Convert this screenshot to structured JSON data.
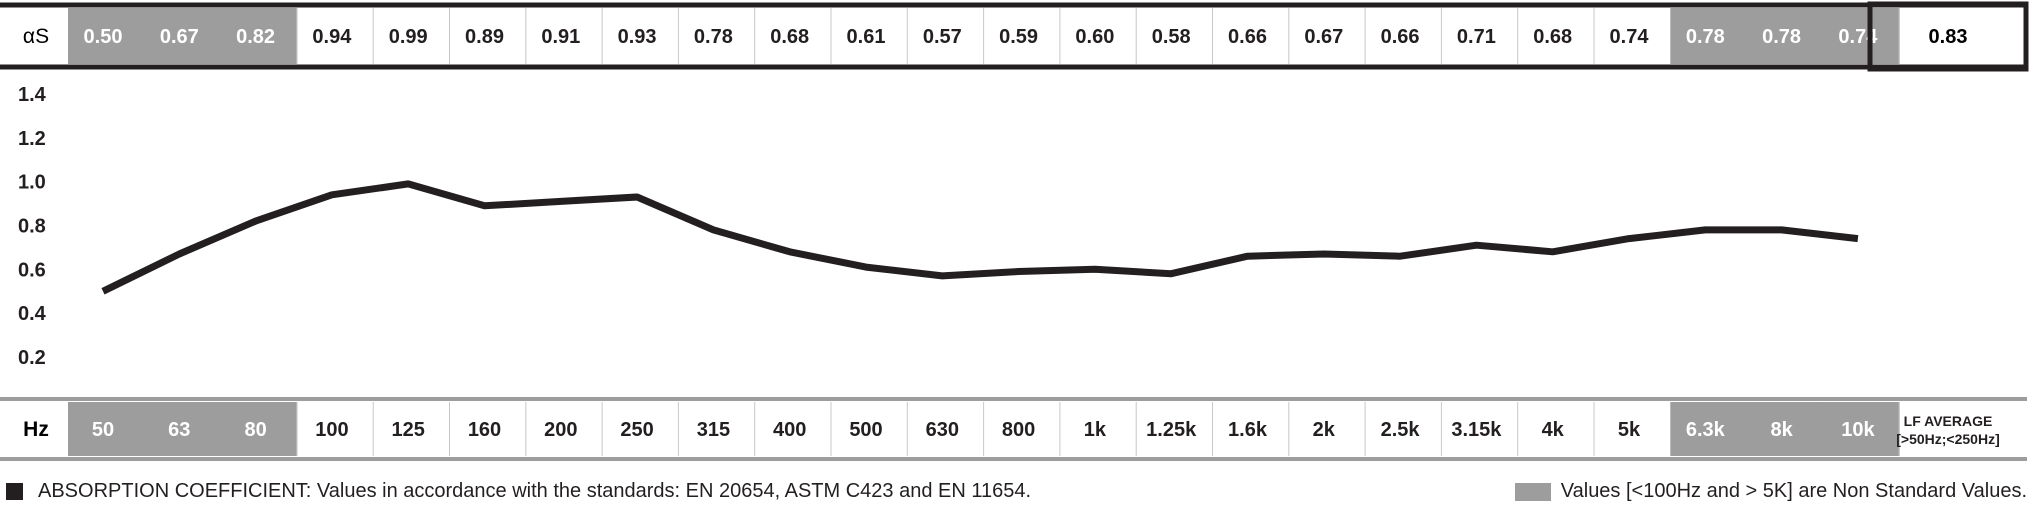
{
  "chart_data": {
    "type": "line",
    "y_axis_label": "αS",
    "x_axis_label": "Hz",
    "categories": [
      "50",
      "63",
      "80",
      "100",
      "125",
      "160",
      "200",
      "250",
      "315",
      "400",
      "500",
      "630",
      "800",
      "1k",
      "1.25k",
      "1.6k",
      "2k",
      "2.5k",
      "3.15k",
      "4k",
      "5k",
      "6.3k",
      "8k",
      "10k"
    ],
    "values": [
      0.5,
      0.67,
      0.82,
      0.94,
      0.99,
      0.89,
      0.91,
      0.93,
      0.78,
      0.68,
      0.61,
      0.57,
      0.59,
      0.6,
      0.58,
      0.66,
      0.67,
      0.66,
      0.71,
      0.68,
      0.74,
      0.78,
      0.78,
      0.74
    ],
    "value_labels": [
      "0.50",
      "0.67",
      "0.82",
      "0.94",
      "0.99",
      "0.89",
      "0.91",
      "0.93",
      "0.78",
      "0.68",
      "0.61",
      "0.57",
      "0.59",
      "0.60",
      "0.58",
      "0.66",
      "0.67",
      "0.66",
      "0.71",
      "0.68",
      "0.74",
      "0.78",
      "0.78",
      "0.74"
    ],
    "non_standard": [
      true,
      true,
      true,
      false,
      false,
      false,
      false,
      false,
      false,
      false,
      false,
      false,
      false,
      false,
      false,
      false,
      false,
      false,
      false,
      false,
      false,
      true,
      true,
      true
    ],
    "y_ticks": [
      "1.4",
      "1.2",
      "1.0",
      "0.8",
      "0.6",
      "0.4",
      "0.2"
    ],
    "y_tick_values": [
      1.4,
      1.2,
      1.0,
      0.8,
      0.6,
      0.4,
      0.2
    ],
    "ylim": [
      0.0,
      1.5
    ],
    "grid": false,
    "lf_average": {
      "value": "0.83",
      "label_line1": "LF AVERAGE",
      "label_line2": "[>50Hz;<250Hz]"
    },
    "colors": {
      "line": "#231f20",
      "non_standard_cell": "#9d9d9d",
      "border": "#231f20"
    }
  },
  "footer": {
    "left": "ABSORPTION COEFFICIENT: Values in accordance with the standards: EN 20654, ASTM C423 and EN 11654.",
    "right": "Values [<100Hz and > 5K] are Non Standard Values."
  }
}
